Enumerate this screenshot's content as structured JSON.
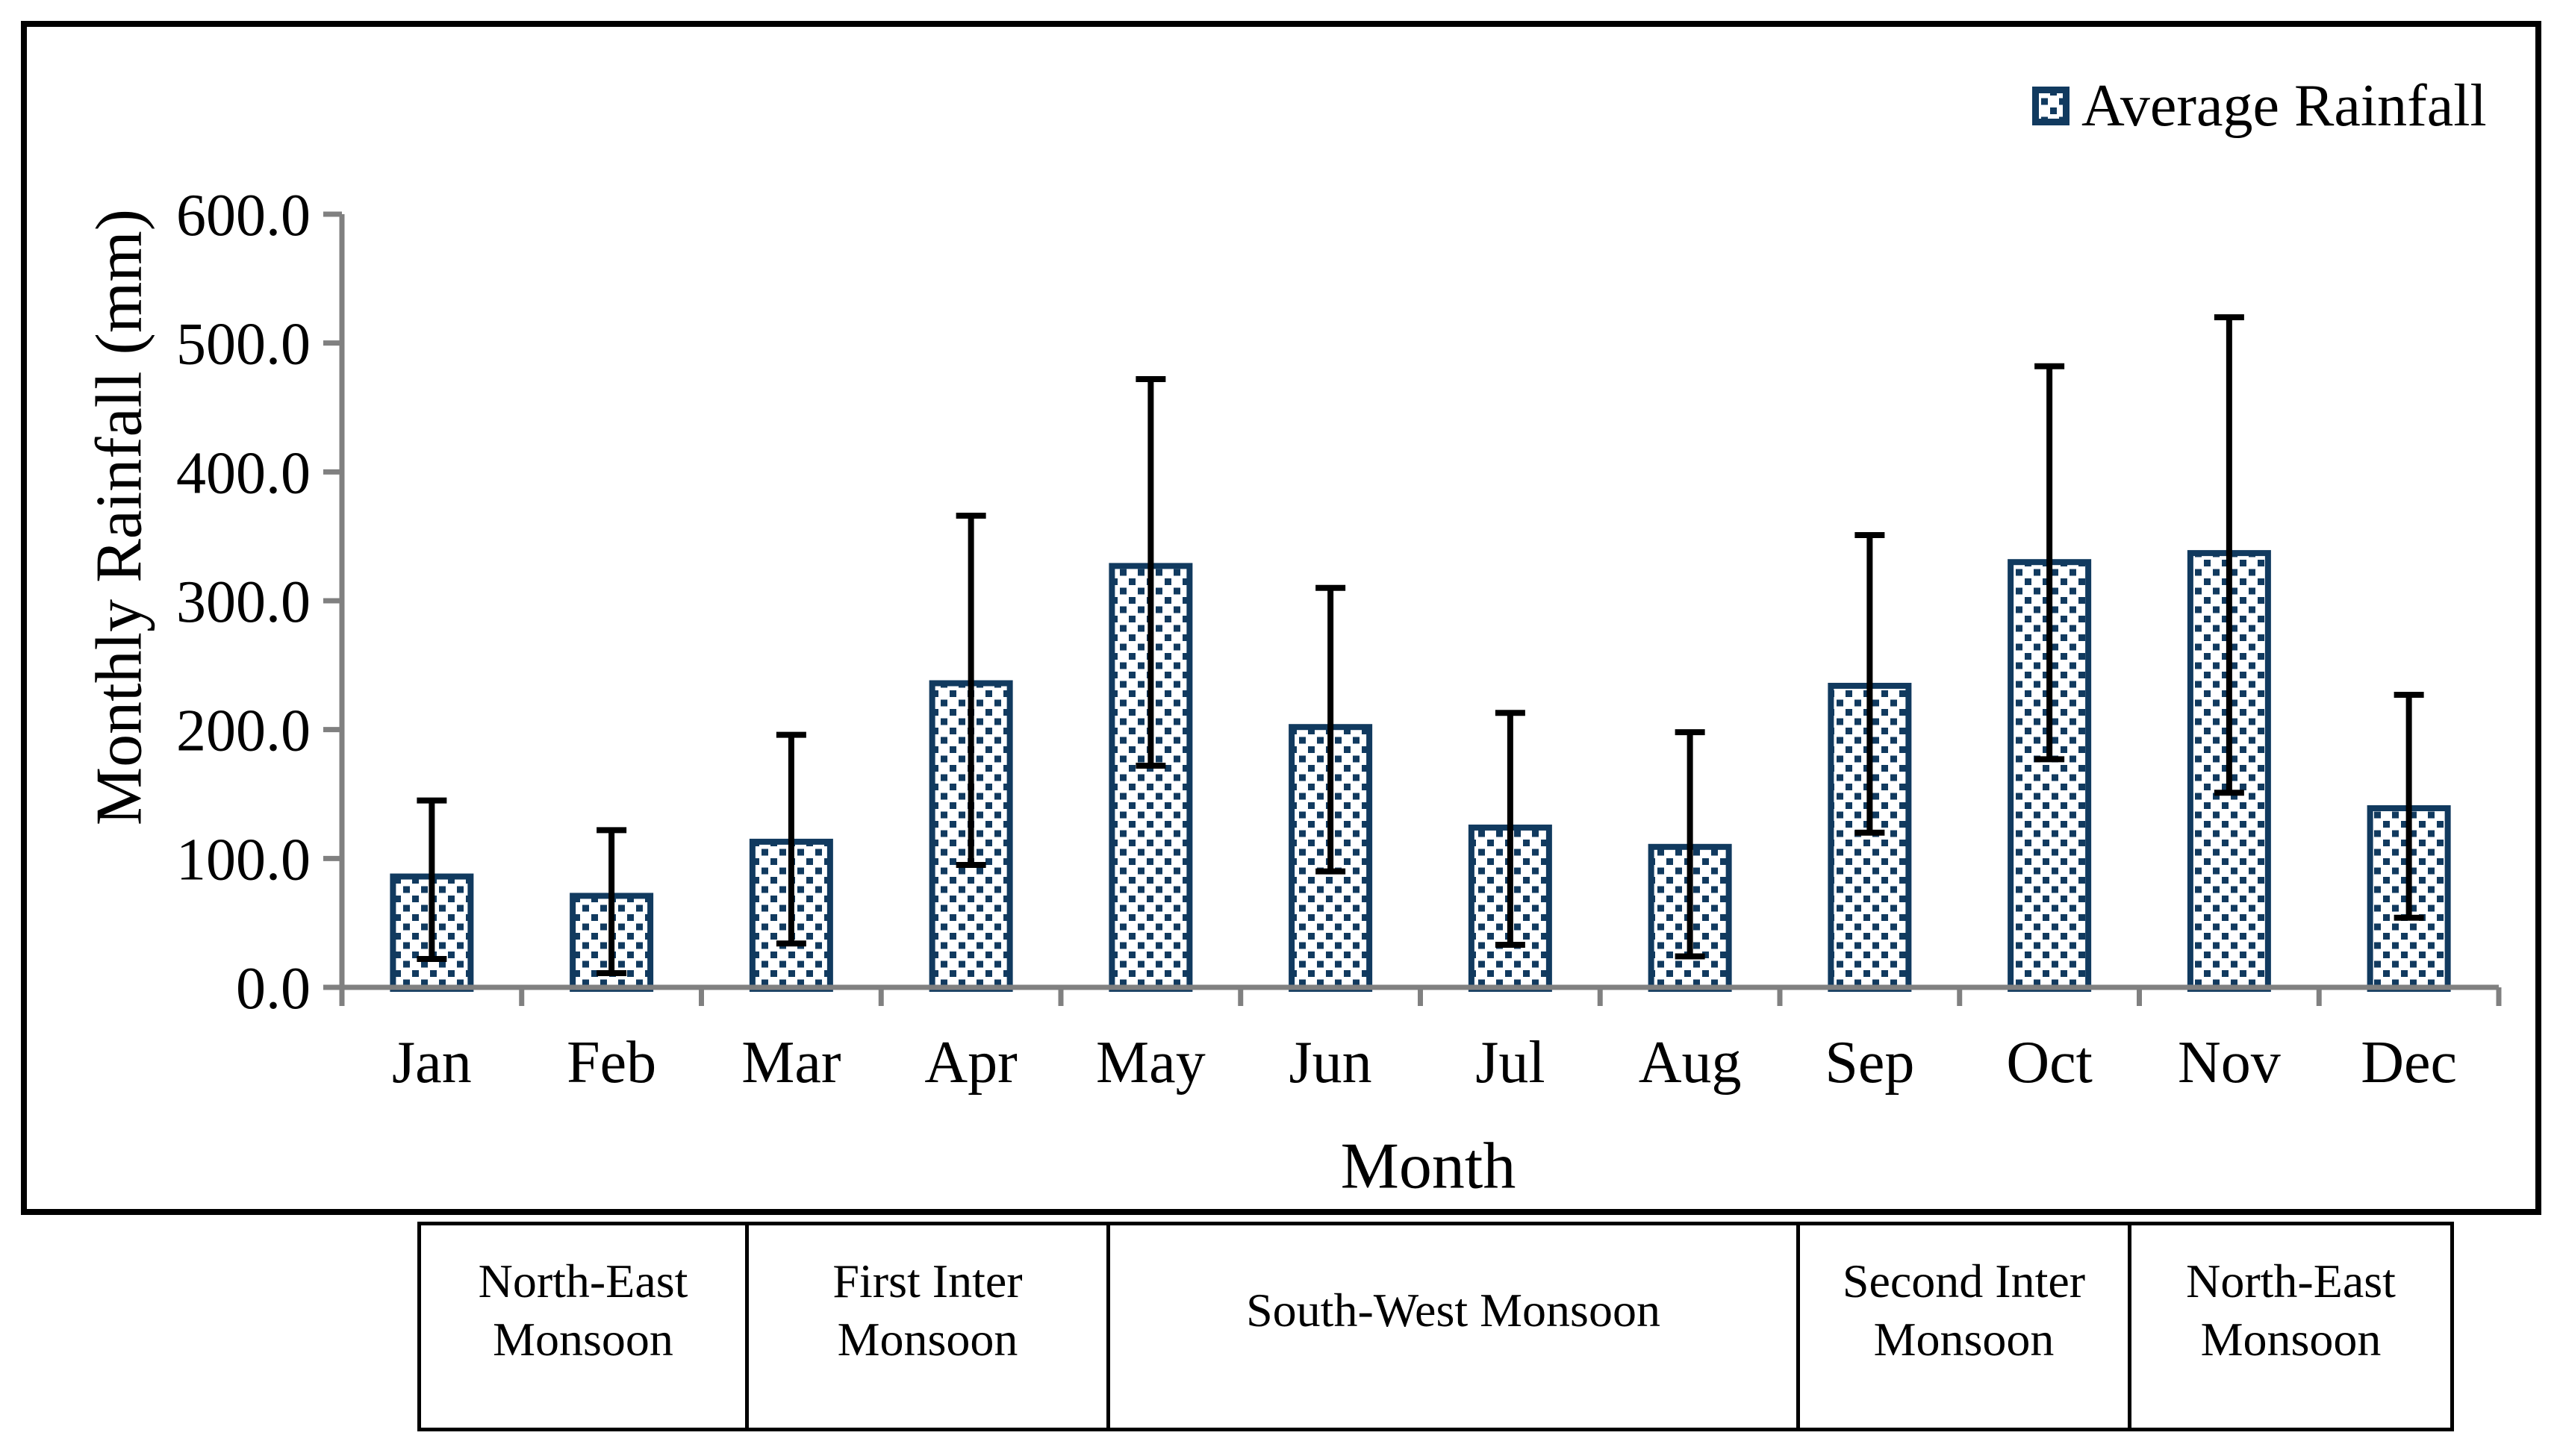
{
  "legend": {
    "label": "Average Rainfall"
  },
  "y_axis": {
    "title": "Monthly Rainfall (mm)",
    "ticks": [
      "0.0",
      "100.0",
      "200.0",
      "300.0",
      "400.0",
      "500.0",
      "600.0"
    ],
    "min": 0,
    "max": 600,
    "step": 100
  },
  "x_axis": {
    "title": "Month"
  },
  "chart_data": {
    "type": "bar",
    "title": "",
    "categories": [
      "Jan",
      "Feb",
      "Mar",
      "Apr",
      "May",
      "Jun",
      "Jul",
      "Aug",
      "Sep",
      "Oct",
      "Nov",
      "Dec"
    ],
    "series": [
      {
        "name": "Average Rainfall",
        "values": [
          86,
          71,
          113,
          236,
          327,
          202,
          124,
          109,
          234,
          330,
          337,
          139
        ],
        "error_low": [
          22,
          11,
          34,
          95,
          172,
          90,
          33,
          24,
          120,
          177,
          151,
          54
        ],
        "error_high": [
          145,
          122,
          196,
          366,
          472,
          310,
          213,
          198,
          351,
          482,
          520,
          227
        ]
      }
    ],
    "xlabel": "Month",
    "ylabel": "Monthly Rainfall (mm)",
    "ylim": [
      0,
      600
    ],
    "grid": false,
    "legend_position": "top-right",
    "bar_style": "white fill with navy square-dot pattern, navy border, black error bars"
  },
  "season_table": {
    "cells": [
      {
        "lines": [
          "North-East",
          "Monsoon"
        ]
      },
      {
        "lines": [
          "First Inter",
          "Monsoon"
        ]
      },
      {
        "lines": [
          "South-West Monsoon"
        ]
      },
      {
        "lines": [
          "Second Inter",
          "Monsoon"
        ]
      },
      {
        "lines": [
          "North-East",
          "Monsoon"
        ]
      }
    ]
  },
  "colors": {
    "bar_border": "#113A5F",
    "bar_dot": "#113A5F",
    "bar_fill": "#FFFFFF",
    "error_bar": "#000000",
    "axis": "#808080",
    "text": "#000000",
    "frame_border": "#000000",
    "background": "#FFFFFF"
  }
}
